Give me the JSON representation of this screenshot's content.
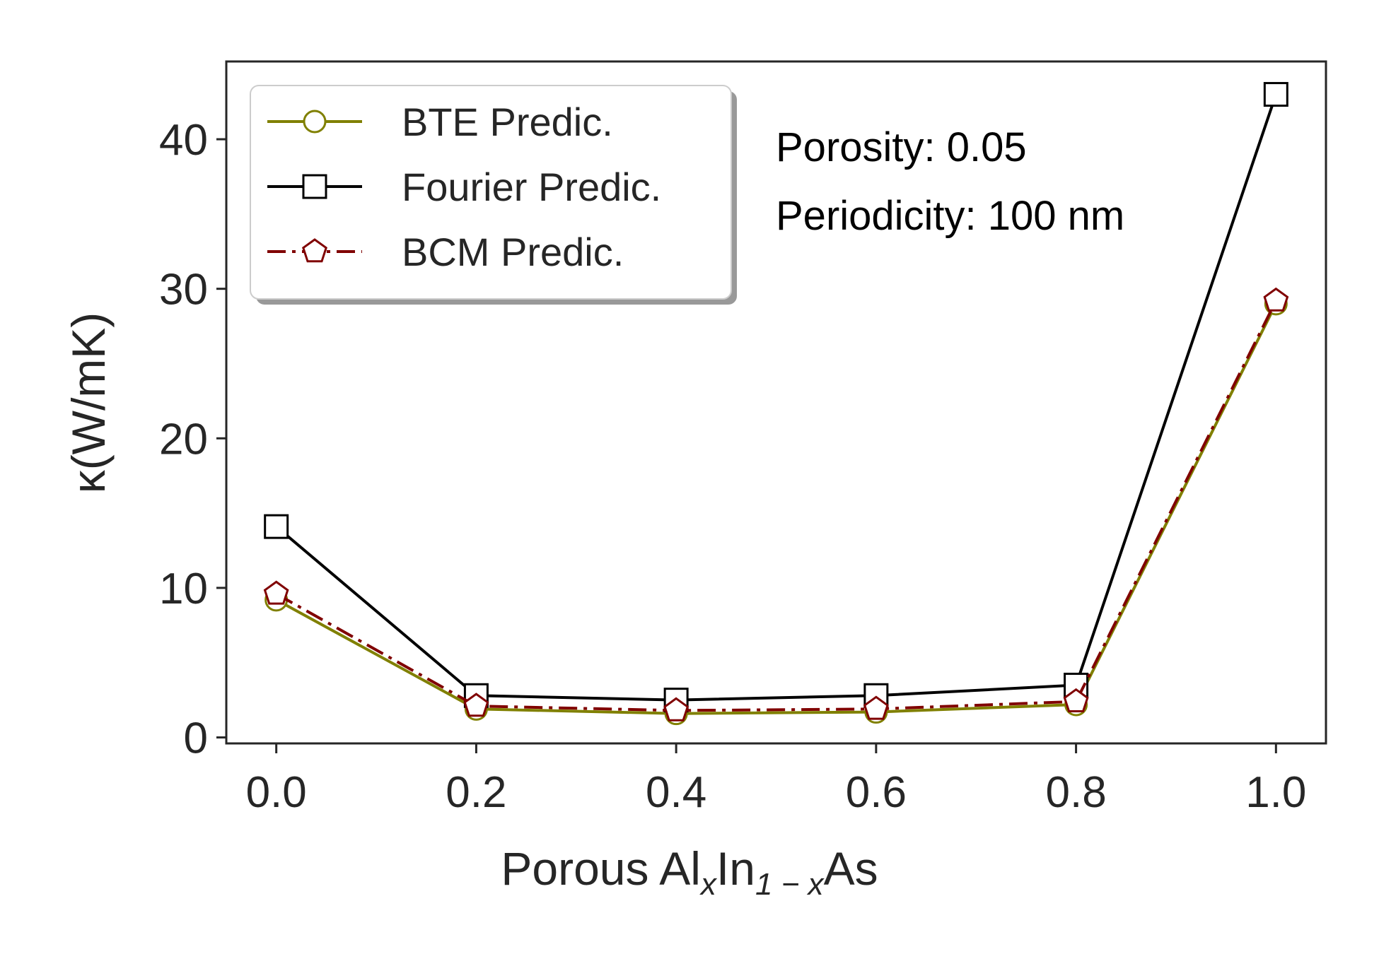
{
  "chart_data": {
    "type": "line",
    "x": [
      0.0,
      0.2,
      0.4,
      0.6,
      0.8,
      1.0
    ],
    "x_tick_labels": [
      "0.0",
      "0.2",
      "0.4",
      "0.6",
      "0.8",
      "1.0"
    ],
    "y_tick_values": [
      0,
      10,
      20,
      30,
      40
    ],
    "y_tick_labels": [
      "0",
      "10",
      "20",
      "30",
      "40"
    ],
    "xlim": [
      -0.05,
      1.05
    ],
    "ylim": [
      -0.4,
      45.2
    ],
    "xlabel_parts": [
      "Porous Al",
      "x",
      "In",
      "1 − x",
      "As"
    ],
    "ylabel": "κ(W/mK)",
    "grid": false,
    "legend_position": "top-left",
    "series": [
      {
        "name": "BTE Predic.",
        "values": [
          9.2,
          1.9,
          1.6,
          1.7,
          2.2,
          29.0
        ],
        "color": "#808000",
        "marker": "circle",
        "linestyle": "solid"
      },
      {
        "name": "Fourier Predic.",
        "values": [
          14.1,
          2.8,
          2.5,
          2.8,
          3.5,
          43.0
        ],
        "color": "#000000",
        "marker": "square",
        "linestyle": "solid"
      },
      {
        "name": "BCM Predic.",
        "values": [
          9.6,
          2.1,
          1.8,
          1.9,
          2.4,
          29.2
        ],
        "color": "#800000",
        "marker": "pentagon",
        "linestyle": "dashdot"
      }
    ],
    "annotations": [
      "Porosity: 0.05",
      "Periodicity: 100 nm"
    ]
  }
}
